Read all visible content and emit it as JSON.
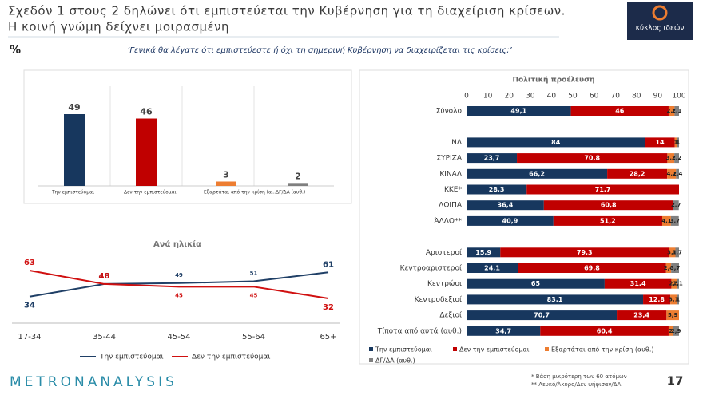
{
  "header": {
    "title_line1": "Σχεδόν 1 στους 2 δηλώνει ότι εμπιστεύεται την Κυβέρνηση για τη διαχείριση κρίσεων.",
    "title_line2": "Η κοινή γνώμη δείχνει μοιρασμένη",
    "unit": "%",
    "question": "‘Γενικά θα λέγατε ότι εμπιστεύεστε ή όχι τη σημερινή Κυβέρνηση να διαχειρίζεται τις κρίσεις;’",
    "logo": "κύκλος ιδεών"
  },
  "chart_data": [
    {
      "type": "bar",
      "categories": [
        "Την εμπιστεύομαι",
        "Δεν την εμπιστεύομαι",
        "Εξαρτάται από την κρίση (α...",
        "ΔΓ/ΔΑ (αυθ.)"
      ],
      "values": [
        49,
        46,
        3,
        2
      ],
      "colors": [
        "#17375e",
        "#c00000",
        "#ed7d31",
        "#7f7f7f"
      ]
    },
    {
      "type": "line",
      "title": "Ανά ηλικία",
      "categories": [
        "17-34",
        "35-44",
        "45-54",
        "55-64",
        "65+"
      ],
      "series": [
        {
          "name": "Την εμπιστεύομαι",
          "color": "#1f3f66",
          "values": [
            34,
            48,
            49,
            51,
            61
          ]
        },
        {
          "name": "Δεν την εμπιστεύομαι",
          "color": "#d01010",
          "values": [
            63,
            48,
            45,
            45,
            32
          ]
        }
      ]
    },
    {
      "type": "hbar_stacked",
      "title": "Πολιτική προέλευση",
      "categories": [
        "Σύνολο",
        null,
        "ΝΔ",
        "ΣΥΡΙΖΑ",
        "ΚΙΝΑΛ",
        "ΚΚΕ*",
        "ΛΟΙΠΑ",
        "ΆΛΛΟ**",
        null,
        "Αριστεροί",
        "Κεντροαριστεροί",
        "Κεντρώοι",
        "Κεντροδεξιοί",
        "Δεξιοί",
        "Τίποτα από αυτά (αυθ.)"
      ],
      "xlim": [
        0,
        100
      ],
      "xticks": [
        0,
        10,
        20,
        30,
        40,
        50,
        60,
        70,
        80,
        90,
        100
      ],
      "series": [
        {
          "name": "Την εμπιστεύομαι",
          "color": "#17375e",
          "values": [
            49.1,
            null,
            84,
            23.7,
            66.2,
            28.3,
            36.4,
            40.9,
            null,
            15.9,
            24.1,
            65,
            83.1,
            70.7,
            34.7
          ],
          "value_labels": [
            "49,1",
            null,
            "84",
            "23,7",
            "66,2",
            "28,3",
            "36,4",
            "40,9",
            null,
            "15,9",
            "24,1",
            "65",
            "83,1",
            "70,7",
            "34,7"
          ]
        },
        {
          "name": "Δεν την εμπιστεύομαι",
          "color": "#c00000",
          "values": [
            46,
            null,
            14,
            70.8,
            28.2,
            71.7,
            60.8,
            51.2,
            null,
            79.3,
            69.8,
            31.4,
            12.8,
            23.4,
            60.4
          ],
          "value_labels": [
            "46",
            null,
            "14",
            "70,8",
            "28,2",
            "71,7",
            "60,8",
            "51,2",
            null,
            "79,3",
            "69,8",
            "31,4",
            "12,8",
            "23,4",
            "60,4"
          ]
        },
        {
          "name": "Εξαρτάται από την κρίση (αυθ.)",
          "color": "#ed7d31",
          "values": [
            2.8,
            null,
            1,
            3.3,
            4.2,
            null,
            null,
            4.1,
            null,
            3.1,
            2.4,
            2.5,
            3.1,
            5.9,
            2
          ],
          "value_labels": [
            "2,8",
            null,
            "1",
            "3,3",
            "4,2",
            null,
            null,
            "4,1",
            null,
            "3,1",
            "2,4",
            "2,5",
            "3,1",
            "5,9",
            "2"
          ]
        },
        {
          "name": "ΔΓ/ΔΑ (αυθ.)",
          "color": "#7f7f7f",
          "values": [
            2.1,
            null,
            1,
            2.2,
            1.4,
            null,
            2.7,
            3.7,
            null,
            1.7,
            3.7,
            1.1,
            1,
            null,
            2.9
          ],
          "value_labels": [
            "2,1",
            null,
            "1",
            "2,2",
            "1,4",
            null,
            "2,7",
            "3,7",
            null,
            "1,7",
            "3,7",
            "1,1",
            "1",
            null,
            "2,9"
          ]
        }
      ]
    }
  ],
  "footer": {
    "brand": "METRONANALYSIS",
    "notes": [
      "* Βάση μικρότερη των 60 ατόμων",
      "** Λευκό/Άκυρο/Δεν ψήφισαν/ΔΑ"
    ],
    "page": "17"
  }
}
